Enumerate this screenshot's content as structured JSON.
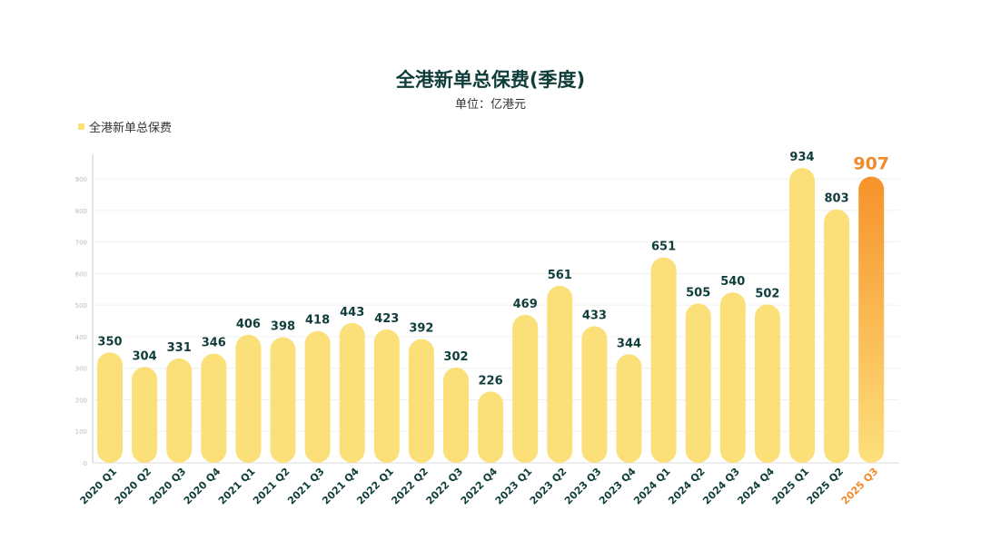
{
  "chart_data": {
    "type": "bar",
    "title": "全港新单总保费(季度)",
    "subtitle": "单位：亿港元",
    "legend": [
      "全港新单总保费"
    ],
    "legend_position": "top-left",
    "categories": [
      "2020 Q1",
      "2020 Q2",
      "2020 Q3",
      "2020 Q4",
      "2021 Q1",
      "2021 Q2",
      "2021 Q3",
      "2021 Q4",
      "2022 Q1",
      "2022 Q2",
      "2022 Q3",
      "2022 Q4",
      "2023 Q1",
      "2023 Q2",
      "2023 Q3",
      "2023 Q4",
      "2024 Q1",
      "2024 Q2",
      "2024 Q3",
      "2024 Q4",
      "2025 Q1",
      "2025 Q2",
      "2025 Q3"
    ],
    "values": [
      350,
      304,
      331,
      346,
      406,
      398,
      418,
      443,
      423,
      392,
      302,
      226,
      469,
      561,
      433,
      344,
      651,
      505,
      540,
      502,
      934,
      803,
      907
    ],
    "highlight_index": 22,
    "ylim": [
      0,
      900
    ],
    "yticks": [
      0,
      100,
      200,
      300,
      400,
      500,
      600,
      700,
      800,
      900
    ],
    "grid": true,
    "colors": {
      "bar": "#fbe07a",
      "highlight_top": "#f7922a",
      "highlight_bottom": "#fde07c",
      "label": "#0f3d3a",
      "highlight_label": "#f08a2a"
    }
  }
}
